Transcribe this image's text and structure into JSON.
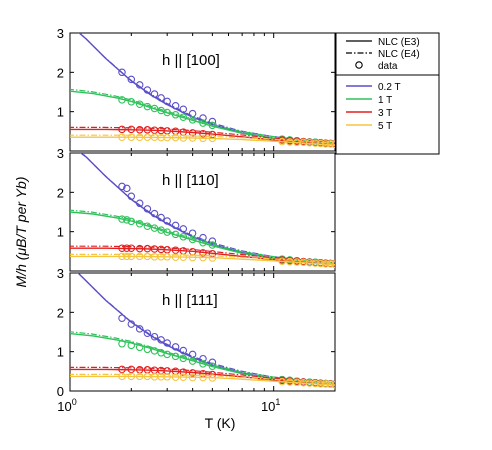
{
  "figure": {
    "ylabel": "M/h (μB/T per Yb)",
    "xlabel": "T (K)",
    "legend": {
      "lines": [
        {
          "label": "NLC  (E3)",
          "style": "solid"
        },
        {
          "label": "NLC  (E4)",
          "style": "dashdot"
        },
        {
          "label": "data",
          "style": "circle"
        }
      ],
      "fields": [
        {
          "label": "0.2 T",
          "color": "#5a4fc8"
        },
        {
          "label": "1 T",
          "color": "#2fc25a"
        },
        {
          "label": "3 T",
          "color": "#e02020"
        },
        {
          "label": "5 T",
          "color": "#f5c542"
        }
      ]
    }
  },
  "chart_data": [
    {
      "type": "line",
      "title": "h || [100]",
      "xscale": "log",
      "xlim": [
        1,
        20
      ],
      "ylim": [
        0,
        3
      ],
      "xticks": [
        "10^0",
        "10^1"
      ],
      "yticks": [
        0,
        1,
        2,
        3
      ],
      "series": [
        {
          "name": "0.2 T",
          "model_x": [
            1.0,
            1.2,
            1.5,
            2.0,
            2.5,
            3,
            4,
            5,
            7,
            10,
            14,
            20
          ],
          "model_y": [
            3.2,
            2.85,
            2.35,
            1.78,
            1.42,
            1.18,
            0.86,
            0.67,
            0.46,
            0.32,
            0.23,
            0.16
          ],
          "data_x": [
            1.8,
            2.0,
            2.2,
            2.4,
            2.6,
            2.8,
            3.0,
            3.3,
            3.6,
            4.0,
            4.5,
            5.0,
            11,
            12,
            13,
            14,
            15,
            16,
            17,
            18,
            19,
            20
          ],
          "data_y": [
            2.0,
            1.82,
            1.68,
            1.55,
            1.45,
            1.35,
            1.26,
            1.15,
            1.06,
            0.95,
            0.84,
            0.75,
            0.3,
            0.28,
            0.26,
            0.24,
            0.23,
            0.22,
            0.21,
            0.2,
            0.19,
            0.18
          ]
        },
        {
          "name": "1 T",
          "model_x": [
            1.0,
            1.3,
            1.7,
            2.0,
            2.5,
            3,
            4,
            5,
            7,
            10,
            14,
            20
          ],
          "model_y": [
            1.52,
            1.46,
            1.35,
            1.26,
            1.1,
            0.97,
            0.78,
            0.63,
            0.45,
            0.32,
            0.23,
            0.16
          ],
          "data_x": [
            1.8,
            2.0,
            2.2,
            2.4,
            2.6,
            2.8,
            3.0,
            3.3,
            3.6,
            4.0,
            4.5,
            5.0,
            11,
            12,
            13,
            14,
            15,
            16,
            17,
            18,
            19,
            20
          ],
          "data_y": [
            1.3,
            1.25,
            1.19,
            1.13,
            1.08,
            1.03,
            0.98,
            0.92,
            0.86,
            0.79,
            0.71,
            0.65,
            0.3,
            0.28,
            0.26,
            0.24,
            0.23,
            0.22,
            0.21,
            0.2,
            0.19,
            0.18
          ]
        },
        {
          "name": "3 T",
          "model_x": [
            1.0,
            1.5,
            2.0,
            2.5,
            3,
            4,
            5,
            7,
            10,
            14,
            20
          ],
          "model_y": [
            0.55,
            0.55,
            0.54,
            0.53,
            0.51,
            0.47,
            0.43,
            0.36,
            0.28,
            0.22,
            0.16
          ],
          "data_x": [
            1.8,
            2.0,
            2.2,
            2.4,
            2.6,
            2.8,
            3.0,
            3.3,
            3.6,
            4.0,
            4.5,
            5.0,
            11,
            12,
            13,
            14,
            15,
            16,
            17,
            18,
            19,
            20
          ],
          "data_y": [
            0.55,
            0.55,
            0.54,
            0.54,
            0.53,
            0.52,
            0.51,
            0.5,
            0.48,
            0.46,
            0.44,
            0.42,
            0.28,
            0.26,
            0.25,
            0.24,
            0.22,
            0.21,
            0.2,
            0.19,
            0.19,
            0.18
          ]
        },
        {
          "name": "5 T",
          "model_x": [
            1.0,
            1.5,
            2.0,
            3,
            4,
            5,
            7,
            10,
            14,
            20
          ],
          "model_y": [
            0.35,
            0.35,
            0.35,
            0.34,
            0.33,
            0.32,
            0.29,
            0.25,
            0.2,
            0.15
          ],
          "data_x": [
            1.8,
            2.0,
            2.2,
            2.4,
            2.6,
            2.8,
            3.0,
            3.3,
            3.6,
            4.0,
            4.5,
            5.0,
            11,
            12,
            13,
            14,
            15,
            16,
            17,
            18,
            19,
            20
          ],
          "data_y": [
            0.35,
            0.35,
            0.35,
            0.35,
            0.35,
            0.34,
            0.34,
            0.34,
            0.33,
            0.33,
            0.32,
            0.32,
            0.24,
            0.23,
            0.22,
            0.22,
            0.21,
            0.2,
            0.19,
            0.18,
            0.18,
            0.17
          ]
        }
      ]
    },
    {
      "type": "line",
      "title": "h || [110]",
      "xscale": "log",
      "xlim": [
        1,
        20
      ],
      "ylim": [
        0,
        3
      ],
      "xticks": [
        "10^0",
        "10^1"
      ],
      "yticks": [
        0,
        1,
        2,
        3
      ],
      "series": [
        {
          "name": "0.2 T",
          "model_x": [
            1.0,
            1.2,
            1.5,
            2.0,
            2.5,
            3,
            4,
            5,
            7,
            10,
            14,
            20
          ],
          "model_y": [
            3.2,
            2.9,
            2.4,
            1.82,
            1.45,
            1.2,
            0.87,
            0.68,
            0.47,
            0.32,
            0.23,
            0.16
          ],
          "data_x": [
            1.8,
            1.9,
            2.0,
            2.2,
            2.4,
            2.6,
            2.8,
            3.0,
            3.3,
            3.6,
            4.0,
            4.5,
            5.0,
            11,
            12,
            13,
            14,
            15,
            16,
            17,
            18,
            19,
            20
          ],
          "data_y": [
            2.15,
            2.1,
            1.9,
            1.72,
            1.58,
            1.46,
            1.36,
            1.27,
            1.16,
            1.07,
            0.96,
            0.85,
            0.76,
            0.3,
            0.28,
            0.26,
            0.24,
            0.23,
            0.22,
            0.21,
            0.2,
            0.19,
            0.18
          ]
        },
        {
          "name": "1 T",
          "model_x": [
            1.0,
            1.3,
            1.7,
            2.0,
            2.5,
            3,
            4,
            5,
            7,
            10,
            14,
            20
          ],
          "model_y": [
            1.5,
            1.45,
            1.35,
            1.27,
            1.12,
            0.98,
            0.79,
            0.64,
            0.45,
            0.32,
            0.23,
            0.16
          ],
          "data_x": [
            1.8,
            1.9,
            2.0,
            2.2,
            2.4,
            2.6,
            2.8,
            3.0,
            3.3,
            3.6,
            4.0,
            4.5,
            5.0,
            11,
            12,
            13,
            14,
            15,
            16,
            17,
            18,
            19,
            20
          ],
          "data_y": [
            1.32,
            1.3,
            1.26,
            1.2,
            1.14,
            1.09,
            1.04,
            0.99,
            0.93,
            0.87,
            0.8,
            0.72,
            0.66,
            0.3,
            0.28,
            0.26,
            0.24,
            0.23,
            0.22,
            0.21,
            0.2,
            0.19,
            0.18
          ]
        },
        {
          "name": "3 T",
          "model_x": [
            1.0,
            1.5,
            2.0,
            2.5,
            3,
            4,
            5,
            7,
            10,
            14,
            20
          ],
          "model_y": [
            0.58,
            0.58,
            0.57,
            0.56,
            0.54,
            0.5,
            0.45,
            0.37,
            0.29,
            0.22,
            0.16
          ],
          "data_x": [
            1.8,
            1.9,
            2.0,
            2.2,
            2.4,
            2.6,
            2.8,
            3.0,
            3.3,
            3.6,
            4.0,
            4.5,
            5.0,
            11,
            12,
            13,
            14,
            15,
            16,
            17,
            18,
            19,
            20
          ],
          "data_y": [
            0.58,
            0.58,
            0.58,
            0.57,
            0.57,
            0.56,
            0.55,
            0.54,
            0.53,
            0.51,
            0.49,
            0.46,
            0.44,
            0.28,
            0.26,
            0.25,
            0.24,
            0.22,
            0.21,
            0.2,
            0.19,
            0.19,
            0.18
          ]
        },
        {
          "name": "5 T",
          "model_x": [
            1.0,
            1.5,
            2.0,
            3,
            4,
            5,
            7,
            10,
            14,
            20
          ],
          "model_y": [
            0.37,
            0.37,
            0.37,
            0.36,
            0.35,
            0.34,
            0.3,
            0.26,
            0.21,
            0.16
          ],
          "data_x": [
            1.8,
            1.9,
            2.0,
            2.2,
            2.4,
            2.6,
            2.8,
            3.0,
            3.3,
            3.6,
            4.0,
            4.5,
            5.0,
            11,
            12,
            13,
            14,
            15,
            16,
            17,
            18,
            19,
            20
          ],
          "data_y": [
            0.37,
            0.37,
            0.37,
            0.37,
            0.37,
            0.36,
            0.36,
            0.36,
            0.35,
            0.35,
            0.34,
            0.34,
            0.33,
            0.25,
            0.24,
            0.23,
            0.22,
            0.21,
            0.2,
            0.19,
            0.18,
            0.18,
            0.17
          ]
        }
      ]
    },
    {
      "type": "line",
      "title": "h || [111]",
      "xscale": "log",
      "xlim": [
        1,
        20
      ],
      "ylim": [
        0,
        3
      ],
      "xticks": [
        "10^0",
        "10^1"
      ],
      "yticks": [
        0,
        1,
        2,
        3
      ],
      "series": [
        {
          "name": "0.2 T",
          "model_x": [
            1.0,
            1.2,
            1.5,
            2.0,
            2.5,
            3,
            4,
            5,
            7,
            10,
            14,
            20
          ],
          "model_y": [
            3.2,
            2.8,
            2.3,
            1.75,
            1.4,
            1.16,
            0.85,
            0.66,
            0.46,
            0.31,
            0.22,
            0.15
          ],
          "data_x": [
            1.8,
            2.0,
            2.2,
            2.4,
            2.6,
            2.8,
            3.0,
            3.3,
            3.6,
            4.0,
            4.5,
            5.0,
            11,
            12,
            13,
            14,
            15,
            16,
            17,
            18,
            19,
            20
          ],
          "data_y": [
            1.85,
            1.7,
            1.58,
            1.47,
            1.38,
            1.3,
            1.22,
            1.12,
            1.03,
            0.93,
            0.82,
            0.73,
            0.29,
            0.27,
            0.25,
            0.23,
            0.22,
            0.21,
            0.2,
            0.19,
            0.18,
            0.17
          ]
        },
        {
          "name": "1 T",
          "model_x": [
            1.0,
            1.3,
            1.7,
            2.0,
            2.5,
            3,
            4,
            5,
            7,
            10,
            14,
            20
          ],
          "model_y": [
            1.46,
            1.4,
            1.3,
            1.22,
            1.08,
            0.95,
            0.77,
            0.62,
            0.44,
            0.31,
            0.22,
            0.15
          ],
          "data_x": [
            1.8,
            2.0,
            2.2,
            2.4,
            2.6,
            2.8,
            3.0,
            3.3,
            3.6,
            4.0,
            4.5,
            5.0,
            11,
            12,
            13,
            14,
            15,
            16,
            17,
            18,
            19,
            20
          ],
          "data_y": [
            1.2,
            1.16,
            1.11,
            1.06,
            1.02,
            0.97,
            0.93,
            0.88,
            0.83,
            0.76,
            0.69,
            0.63,
            0.29,
            0.27,
            0.25,
            0.23,
            0.22,
            0.21,
            0.2,
            0.19,
            0.18,
            0.17
          ]
        },
        {
          "name": "3 T",
          "model_x": [
            1.0,
            1.5,
            2.0,
            2.5,
            3,
            4,
            5,
            7,
            10,
            14,
            20
          ],
          "model_y": [
            0.55,
            0.55,
            0.54,
            0.53,
            0.51,
            0.47,
            0.43,
            0.36,
            0.28,
            0.21,
            0.15
          ],
          "data_x": [
            1.8,
            2.0,
            2.2,
            2.4,
            2.6,
            2.8,
            3.0,
            3.3,
            3.6,
            4.0,
            4.5,
            5.0,
            11,
            12,
            13,
            14,
            15,
            16,
            17,
            18,
            19,
            20
          ],
          "data_y": [
            0.55,
            0.55,
            0.54,
            0.54,
            0.53,
            0.52,
            0.51,
            0.5,
            0.48,
            0.46,
            0.44,
            0.42,
            0.27,
            0.25,
            0.24,
            0.23,
            0.21,
            0.2,
            0.19,
            0.18,
            0.18,
            0.17
          ]
        },
        {
          "name": "5 T",
          "model_x": [
            1.0,
            1.5,
            2.0,
            3,
            4,
            5,
            7,
            10,
            14,
            20
          ],
          "model_y": [
            0.37,
            0.37,
            0.37,
            0.36,
            0.35,
            0.34,
            0.3,
            0.25,
            0.2,
            0.15
          ],
          "data_x": [
            1.8,
            2.0,
            2.2,
            2.4,
            2.6,
            2.8,
            3.0,
            3.3,
            3.6,
            4.0,
            4.5,
            5.0,
            11,
            12,
            13,
            14,
            15,
            16,
            17,
            18,
            19,
            20
          ],
          "data_y": [
            0.37,
            0.37,
            0.37,
            0.37,
            0.36,
            0.36,
            0.36,
            0.35,
            0.35,
            0.34,
            0.34,
            0.33,
            0.24,
            0.23,
            0.22,
            0.21,
            0.2,
            0.19,
            0.18,
            0.18,
            0.17,
            0.16
          ]
        }
      ]
    }
  ]
}
